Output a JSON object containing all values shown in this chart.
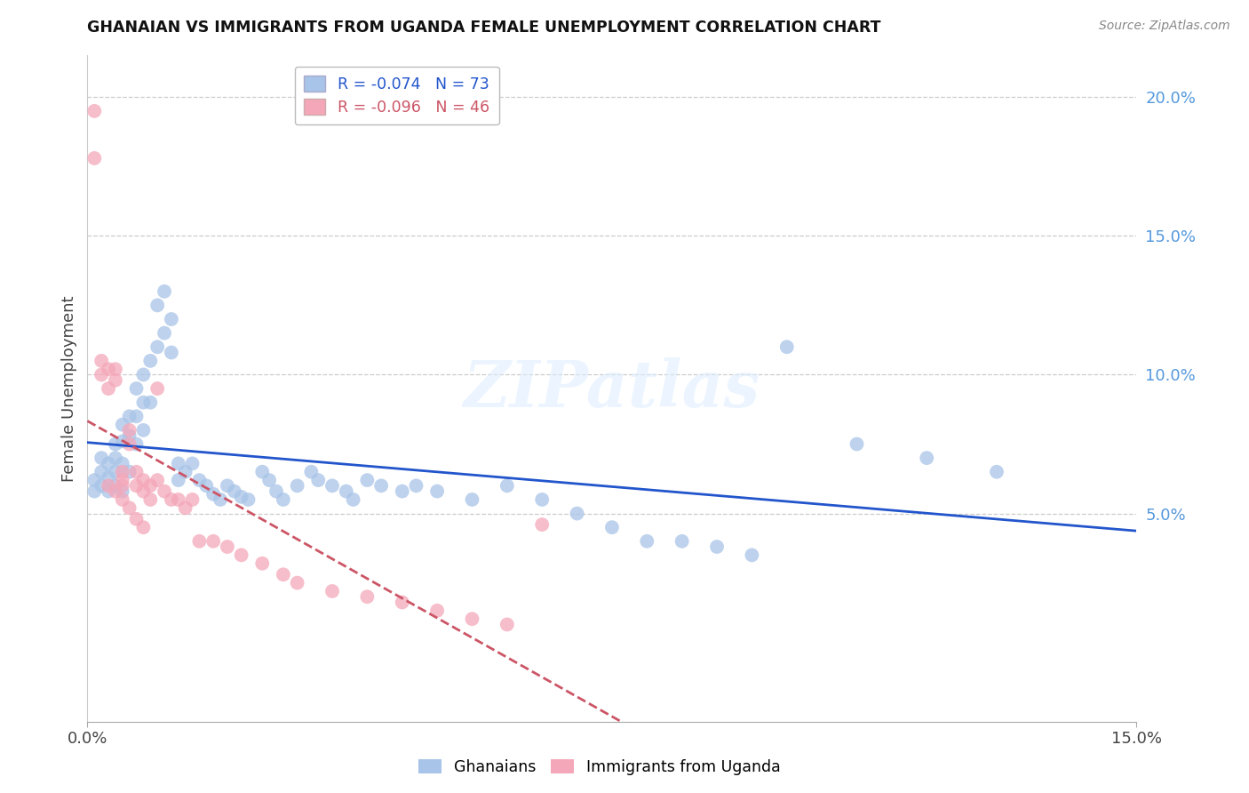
{
  "title": "GHANAIAN VS IMMIGRANTS FROM UGANDA FEMALE UNEMPLOYMENT CORRELATION CHART",
  "source": "Source: ZipAtlas.com",
  "ylabel": "Female Unemployment",
  "x_min": 0.0,
  "x_max": 0.15,
  "y_min": -0.025,
  "y_max": 0.215,
  "y_ticks_right": [
    0.05,
    0.1,
    0.15,
    0.2
  ],
  "y_tick_labels_right": [
    "5.0%",
    "10.0%",
    "15.0%",
    "20.0%"
  ],
  "x_tick_positions": [
    0.0,
    0.15
  ],
  "x_tick_labels": [
    "0.0%",
    "15.0%"
  ],
  "ghanaian_R": -0.074,
  "ghanaian_N": 73,
  "uganda_R": -0.096,
  "uganda_N": 46,
  "ghanaian_color": "#A8C4E8",
  "uganda_color": "#F4A7B9",
  "trend_ghanaian_color": "#2255CC",
  "trend_uganda_color": "#CC5566",
  "watermark_text": "ZIPatlas",
  "ghanaian_x": [
    0.001,
    0.001,
    0.002,
    0.002,
    0.002,
    0.003,
    0.003,
    0.003,
    0.004,
    0.004,
    0.004,
    0.004,
    0.005,
    0.005,
    0.005,
    0.005,
    0.006,
    0.006,
    0.006,
    0.007,
    0.007,
    0.007,
    0.008,
    0.008,
    0.008,
    0.009,
    0.009,
    0.01,
    0.01,
    0.011,
    0.011,
    0.012,
    0.012,
    0.013,
    0.013,
    0.014,
    0.015,
    0.016,
    0.017,
    0.018,
    0.019,
    0.02,
    0.021,
    0.022,
    0.023,
    0.025,
    0.026,
    0.027,
    0.028,
    0.03,
    0.032,
    0.033,
    0.035,
    0.037,
    0.038,
    0.04,
    0.042,
    0.045,
    0.047,
    0.05,
    0.055,
    0.06,
    0.065,
    0.07,
    0.075,
    0.08,
    0.085,
    0.09,
    0.095,
    0.1,
    0.11,
    0.12,
    0.13
  ],
  "ghanaian_y": [
    0.062,
    0.058,
    0.07,
    0.065,
    0.06,
    0.068,
    0.063,
    0.058,
    0.075,
    0.07,
    0.065,
    0.06,
    0.082,
    0.076,
    0.068,
    0.058,
    0.085,
    0.078,
    0.065,
    0.095,
    0.085,
    0.075,
    0.1,
    0.09,
    0.08,
    0.105,
    0.09,
    0.125,
    0.11,
    0.13,
    0.115,
    0.12,
    0.108,
    0.068,
    0.062,
    0.065,
    0.068,
    0.062,
    0.06,
    0.057,
    0.055,
    0.06,
    0.058,
    0.056,
    0.055,
    0.065,
    0.062,
    0.058,
    0.055,
    0.06,
    0.065,
    0.062,
    0.06,
    0.058,
    0.055,
    0.062,
    0.06,
    0.058,
    0.06,
    0.058,
    0.055,
    0.06,
    0.055,
    0.05,
    0.045,
    0.04,
    0.04,
    0.038,
    0.035,
    0.11,
    0.075,
    0.07,
    0.065
  ],
  "uganda_x": [
    0.001,
    0.001,
    0.002,
    0.002,
    0.003,
    0.003,
    0.004,
    0.004,
    0.005,
    0.005,
    0.005,
    0.006,
    0.006,
    0.007,
    0.007,
    0.008,
    0.008,
    0.009,
    0.009,
    0.01,
    0.01,
    0.011,
    0.012,
    0.013,
    0.014,
    0.015,
    0.016,
    0.018,
    0.02,
    0.022,
    0.025,
    0.028,
    0.03,
    0.035,
    0.04,
    0.045,
    0.05,
    0.055,
    0.06,
    0.065,
    0.003,
    0.004,
    0.005,
    0.006,
    0.007,
    0.008
  ],
  "uganda_y": [
    0.195,
    0.178,
    0.105,
    0.1,
    0.102,
    0.095,
    0.102,
    0.098,
    0.065,
    0.062,
    0.06,
    0.08,
    0.075,
    0.065,
    0.06,
    0.062,
    0.058,
    0.06,
    0.055,
    0.095,
    0.062,
    0.058,
    0.055,
    0.055,
    0.052,
    0.055,
    0.04,
    0.04,
    0.038,
    0.035,
    0.032,
    0.028,
    0.025,
    0.022,
    0.02,
    0.018,
    0.015,
    0.012,
    0.01,
    0.046,
    0.06,
    0.058,
    0.055,
    0.052,
    0.048,
    0.045
  ]
}
